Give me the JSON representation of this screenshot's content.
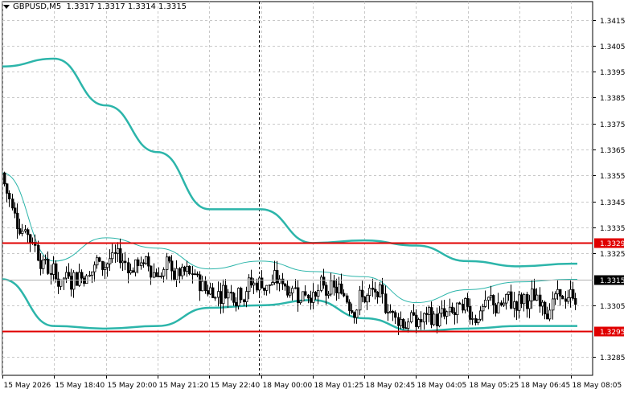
{
  "header": {
    "symbol_timeframe": "GBPUSD,M5",
    "ohlc": "1.3317 1.3317 1.3314 1.3315"
  },
  "colors": {
    "background": "#ffffff",
    "grid": "#c8c8c8",
    "candles": "#000000",
    "bands": "#2cb5aa",
    "level_line": "#e00000",
    "current_price_bg": "#000000",
    "level_label_bg": "#e00000"
  },
  "price_axis": {
    "ticks": [
      "1.3415",
      "1.3405",
      "1.3395",
      "1.3385",
      "1.3375",
      "1.3365",
      "1.3355",
      "1.3345",
      "1.3335",
      "1.3325",
      "1.3305",
      "1.3285"
    ]
  },
  "time_axis": {
    "labels": [
      "15 May 2026",
      "15 May 18:40",
      "15 May 20:00",
      "15 May 21:20",
      "15 May 22:40",
      "18 May 00:00",
      "18 May 01:25",
      "18 May 02:45",
      "18 May 04:05",
      "18 May 05:25",
      "18 May 06:45",
      "18 May 08:05"
    ]
  },
  "levels": [
    {
      "label": "1.3329",
      "price": 1.3329
    },
    {
      "label": "1.3295",
      "price": 1.3295
    }
  ],
  "current_price": {
    "label": "1.3315",
    "price": 1.3315
  },
  "chart_data": {
    "type": "candlestick",
    "symbol": "GBPUSD",
    "timeframe": "M5",
    "ylim": [
      1.3278,
      1.3422
    ],
    "grid": true,
    "x": [
      "15 May 2026",
      "15 May 18:40",
      "15 May 20:00",
      "15 May 21:20",
      "15 May 22:40",
      "18 May 00:00",
      "18 May 01:25",
      "18 May 02:45",
      "18 May 04:05",
      "18 May 05:25",
      "18 May 06:45",
      "18 May 08:05"
    ],
    "series": [
      {
        "values": [
          1.3356,
          1.3322,
          1.3331,
          1.3327,
          1.3319,
          1.3322,
          1.3318,
          1.3316,
          1.3306,
          1.3311,
          1.3314,
          1.3315
        ]
      },
      {
        "values": [
          1.3397,
          1.34,
          1.3382,
          1.3364,
          1.3342,
          1.3342,
          1.3329,
          1.333,
          1.3328,
          1.3322,
          1.332,
          1.3321
        ]
      },
      {
        "values": [
          1.3315,
          1.3297,
          1.3296,
          1.3297,
          1.3304,
          1.3305,
          1.3307,
          1.33,
          1.3295,
          1.3296,
          1.3297,
          1.3297
        ]
      }
    ],
    "current_price": 1.3315,
    "horizontal_levels": [
      1.3329,
      1.3295
    ]
  }
}
